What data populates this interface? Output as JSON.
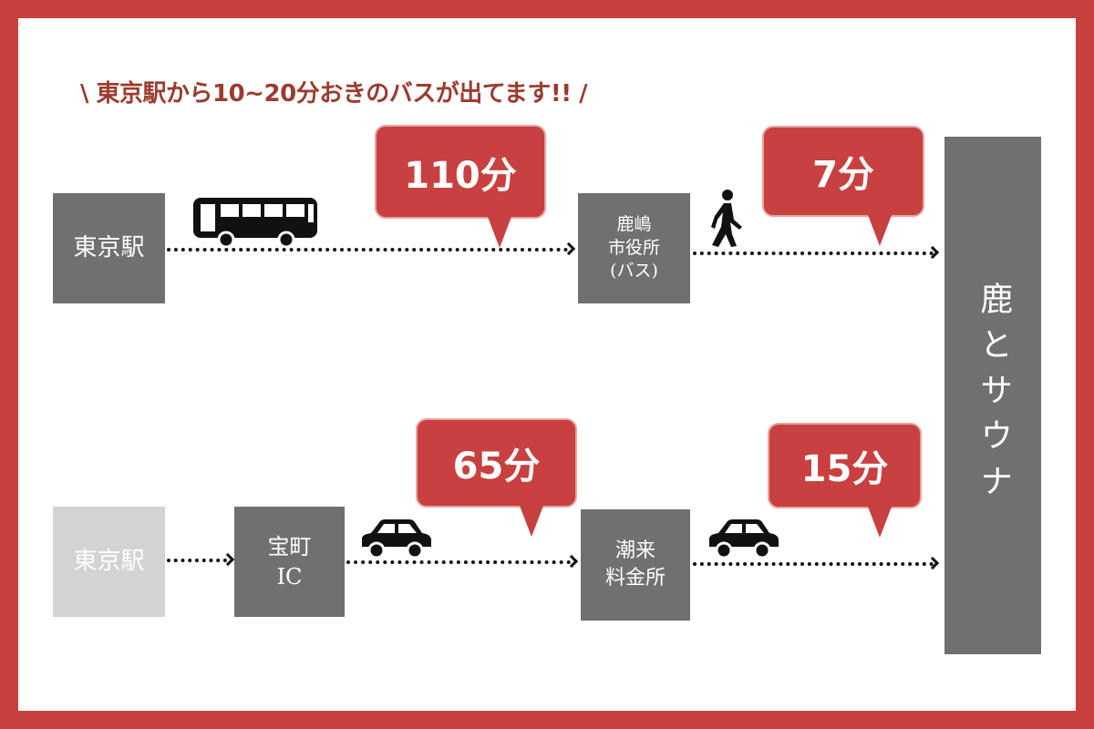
{
  "headline": "\\ 東京駅から10~20分おきのバスが出てます!! /",
  "destination": "鹿とサウナ",
  "route_bus": {
    "start": "東京駅",
    "transit_time": "110分",
    "stop": [
      "鹿嶋",
      "市役所",
      "(バス)"
    ],
    "walk_time": "7分",
    "icons": [
      "bus-icon",
      "walking-person-icon"
    ]
  },
  "route_car": {
    "start": "東京駅",
    "interchange": [
      "宝町",
      "IC"
    ],
    "drive_time_1": "65分",
    "tollgate": [
      "潮来",
      "料金所"
    ],
    "drive_time_2": "15分",
    "icons": [
      "car-icon",
      "car-icon"
    ]
  },
  "colors": {
    "frame": "#c9413f",
    "bubble": "#c8403f",
    "box": "#707070",
    "box_light": "#d3d3d3",
    "headline": "#9b3c30"
  }
}
